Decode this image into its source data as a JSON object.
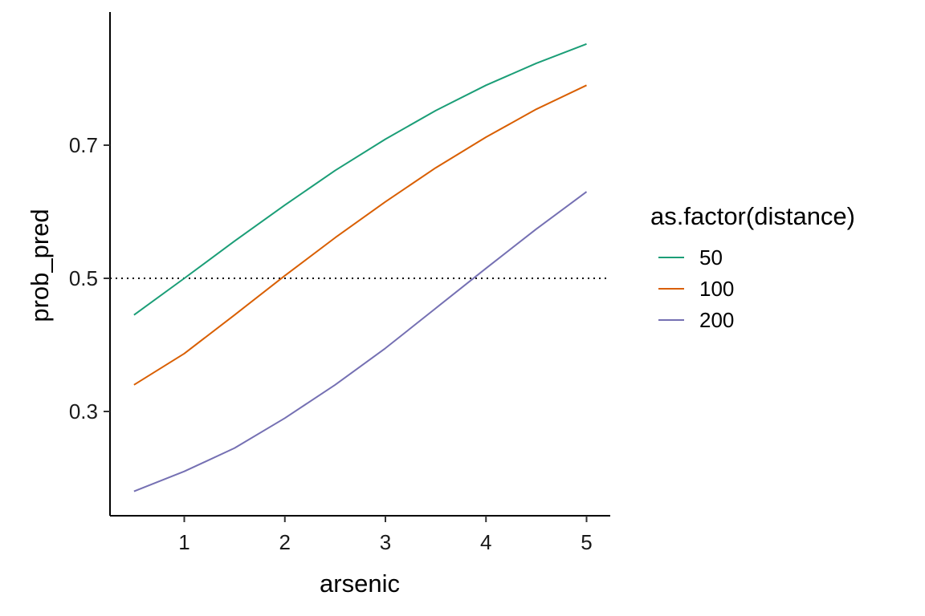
{
  "chart_data": {
    "type": "line",
    "xlabel": "arsenic",
    "ylabel": "prob_pred",
    "xlim": [
      0.5,
      5
    ],
    "ylim": [
      0.18,
      0.86
    ],
    "x_ticks": [
      1,
      2,
      3,
      4,
      5
    ],
    "y_ticks": [
      0.3,
      0.5,
      0.7
    ],
    "x_tick_labels": [
      "1",
      "2",
      "3",
      "4",
      "5"
    ],
    "y_tick_labels": [
      "0.3",
      "0.5",
      "0.7"
    ],
    "reference_line": {
      "y": 0.5,
      "style": "dotted"
    },
    "legend_title": "as.factor(distance)",
    "legend_position": "right",
    "grid": false,
    "x": [
      0.5,
      1,
      1.5,
      2,
      2.5,
      3,
      3.5,
      4,
      4.5,
      5
    ],
    "series": [
      {
        "name": "50",
        "color": "#1B9E77",
        "values": [
          0.445,
          0.5,
          0.556,
          0.61,
          0.662,
          0.709,
          0.752,
          0.79,
          0.823,
          0.852
        ]
      },
      {
        "name": "100",
        "color": "#D95F02",
        "values": [
          0.34,
          0.387,
          0.445,
          0.504,
          0.561,
          0.615,
          0.666,
          0.712,
          0.754,
          0.79
        ]
      },
      {
        "name": "200",
        "color": "#7570B3",
        "values": [
          0.18,
          0.21,
          0.245,
          0.29,
          0.34,
          0.395,
          0.455,
          0.515,
          0.574,
          0.63
        ]
      }
    ]
  }
}
